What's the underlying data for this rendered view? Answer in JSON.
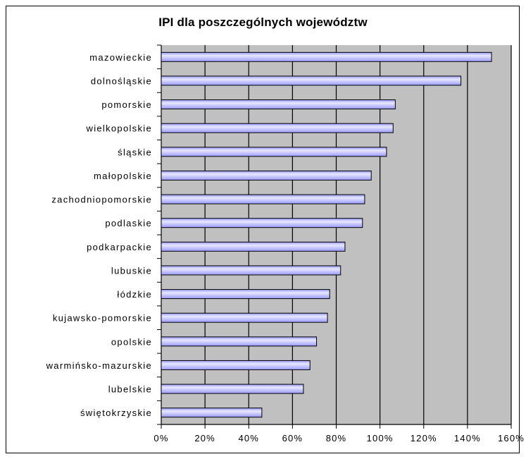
{
  "chart_data": {
    "type": "bar",
    "orientation": "horizontal",
    "title": "IPI dla poszczególnych województw",
    "xlabel": "",
    "ylabel": "",
    "categories": [
      "mazowieckie",
      "dolnośląskie",
      "pomorskie",
      "wielkopolskie",
      "śląskie",
      "małopolskie",
      "zachodniopomorskie",
      "podlaskie",
      "podkarpackie",
      "lubuskie",
      "łódzkie",
      "kujawsko-pomorskie",
      "opolskie",
      "warmińsko-mazurskie",
      "lubelskie",
      "świętokrzyskie"
    ],
    "values": [
      151,
      137,
      107,
      106,
      103,
      96,
      93,
      92,
      84,
      82,
      77,
      76,
      71,
      68,
      65,
      46
    ],
    "value_unit": "%",
    "xlim": [
      0,
      160
    ],
    "xticks": [
      0,
      20,
      40,
      60,
      80,
      100,
      120,
      140,
      160
    ],
    "xtick_labels": [
      "0%",
      "20%",
      "40%",
      "60%",
      "80%",
      "100%",
      "120%",
      "140%",
      "160%"
    ],
    "grid": "vertical",
    "legend": "none",
    "colors": {
      "plot_background": "#c0c0c0",
      "bar_fill": "#9999ff",
      "bar_highlight": "#e8e8ff",
      "bar_outline": "#000000",
      "gridline": "#000000"
    }
  }
}
